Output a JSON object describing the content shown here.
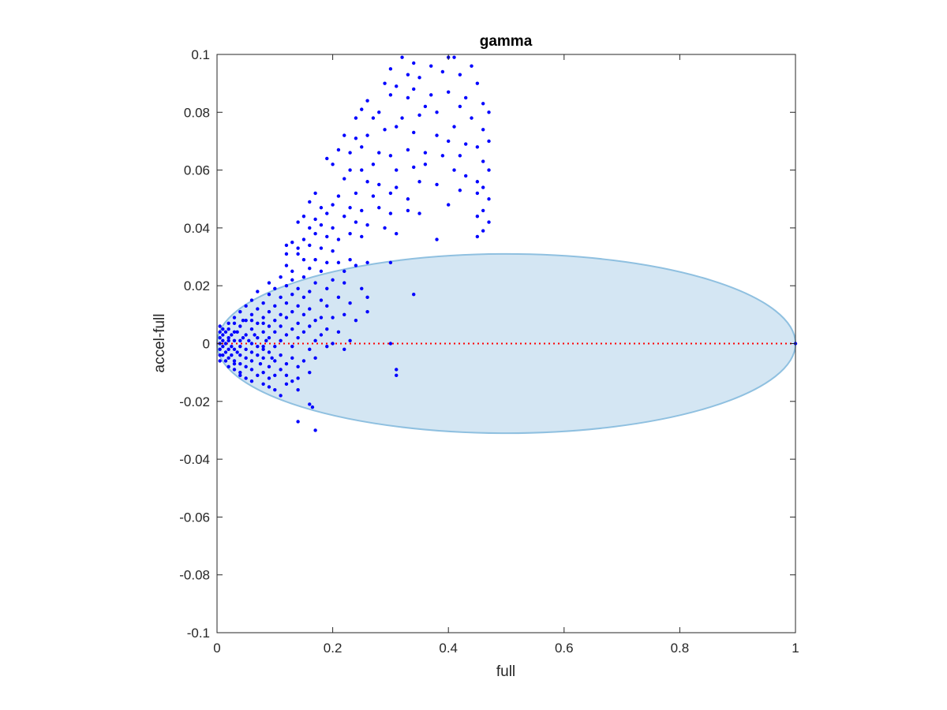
{
  "chart_data": {
    "type": "scatter",
    "title": "gamma",
    "xlabel": "full",
    "ylabel": "accel-full",
    "xlim": [
      0,
      1
    ],
    "ylim": [
      -0.1,
      0.1
    ],
    "xticks": [
      0,
      0.2,
      0.4,
      0.6,
      0.8,
      1
    ],
    "xtick_labels": [
      "0",
      "0.2",
      "0.4",
      "0.6",
      "0.8",
      "1"
    ],
    "yticks": [
      -0.1,
      -0.08,
      -0.06,
      -0.04,
      -0.02,
      0,
      0.02,
      0.04,
      0.06,
      0.08,
      0.1
    ],
    "ytick_labels": [
      "-0.1",
      "-0.08",
      "-0.06",
      "-0.04",
      "-0.02",
      "0",
      "0.02",
      "0.04",
      "0.06",
      "0.08",
      "0.1"
    ],
    "grid": false,
    "marker_color": "#0000ff",
    "ellipse": {
      "center": [
        0.5,
        0
      ],
      "semi_axes": [
        0.5,
        0.031
      ],
      "fill": "#d4e6f3",
      "stroke": "#8fc0e0"
    },
    "reference_line": {
      "y": 0,
      "x_range": [
        0,
        1
      ],
      "color": "#ff0000",
      "style": "dotted"
    },
    "points": [
      [
        0.32,
        0.099
      ],
      [
        0.34,
        0.097
      ],
      [
        0.37,
        0.096
      ],
      [
        0.4,
        0.099
      ],
      [
        0.41,
        0.099
      ],
      [
        0.44,
        0.096
      ],
      [
        0.3,
        0.095
      ],
      [
        0.33,
        0.093
      ],
      [
        0.35,
        0.092
      ],
      [
        0.39,
        0.094
      ],
      [
        0.42,
        0.093
      ],
      [
        0.45,
        0.09
      ],
      [
        0.29,
        0.09
      ],
      [
        0.31,
        0.089
      ],
      [
        0.34,
        0.088
      ],
      [
        0.37,
        0.086
      ],
      [
        0.4,
        0.087
      ],
      [
        0.43,
        0.085
      ],
      [
        0.46,
        0.083
      ],
      [
        0.47,
        0.08
      ],
      [
        0.44,
        0.078
      ],
      [
        0.42,
        0.082
      ],
      [
        0.36,
        0.082
      ],
      [
        0.33,
        0.085
      ],
      [
        0.3,
        0.086
      ],
      [
        0.26,
        0.084
      ],
      [
        0.25,
        0.081
      ],
      [
        0.27,
        0.078
      ],
      [
        0.28,
        0.08
      ],
      [
        0.24,
        0.078
      ],
      [
        0.32,
        0.078
      ],
      [
        0.35,
        0.079
      ],
      [
        0.38,
        0.08
      ],
      [
        0.41,
        0.075
      ],
      [
        0.46,
        0.074
      ],
      [
        0.47,
        0.07
      ],
      [
        0.45,
        0.068
      ],
      [
        0.43,
        0.069
      ],
      [
        0.4,
        0.07
      ],
      [
        0.38,
        0.072
      ],
      [
        0.34,
        0.073
      ],
      [
        0.31,
        0.075
      ],
      [
        0.29,
        0.074
      ],
      [
        0.26,
        0.072
      ],
      [
        0.24,
        0.071
      ],
      [
        0.22,
        0.072
      ],
      [
        0.21,
        0.067
      ],
      [
        0.23,
        0.066
      ],
      [
        0.25,
        0.068
      ],
      [
        0.28,
        0.066
      ],
      [
        0.3,
        0.065
      ],
      [
        0.33,
        0.067
      ],
      [
        0.36,
        0.066
      ],
      [
        0.39,
        0.065
      ],
      [
        0.42,
        0.065
      ],
      [
        0.46,
        0.063
      ],
      [
        0.47,
        0.06
      ],
      [
        0.45,
        0.056
      ],
      [
        0.43,
        0.058
      ],
      [
        0.41,
        0.06
      ],
      [
        0.36,
        0.062
      ],
      [
        0.34,
        0.061
      ],
      [
        0.31,
        0.06
      ],
      [
        0.27,
        0.062
      ],
      [
        0.25,
        0.06
      ],
      [
        0.23,
        0.06
      ],
      [
        0.19,
        0.064
      ],
      [
        0.2,
        0.062
      ],
      [
        0.22,
        0.057
      ],
      [
        0.26,
        0.056
      ],
      [
        0.28,
        0.055
      ],
      [
        0.31,
        0.054
      ],
      [
        0.35,
        0.056
      ],
      [
        0.38,
        0.055
      ],
      [
        0.46,
        0.054
      ],
      [
        0.47,
        0.05
      ],
      [
        0.45,
        0.052
      ],
      [
        0.42,
        0.053
      ],
      [
        0.4,
        0.048
      ],
      [
        0.33,
        0.05
      ],
      [
        0.3,
        0.052
      ],
      [
        0.27,
        0.051
      ],
      [
        0.24,
        0.052
      ],
      [
        0.21,
        0.051
      ],
      [
        0.17,
        0.052
      ],
      [
        0.16,
        0.049
      ],
      [
        0.18,
        0.047
      ],
      [
        0.2,
        0.048
      ],
      [
        0.23,
        0.047
      ],
      [
        0.25,
        0.046
      ],
      [
        0.28,
        0.047
      ],
      [
        0.3,
        0.045
      ],
      [
        0.33,
        0.046
      ],
      [
        0.35,
        0.045
      ],
      [
        0.46,
        0.046
      ],
      [
        0.47,
        0.042
      ],
      [
        0.45,
        0.044
      ],
      [
        0.46,
        0.039
      ],
      [
        0.45,
        0.037
      ],
      [
        0.38,
        0.036
      ],
      [
        0.31,
        0.038
      ],
      [
        0.29,
        0.04
      ],
      [
        0.26,
        0.041
      ],
      [
        0.24,
        0.042
      ],
      [
        0.22,
        0.044
      ],
      [
        0.19,
        0.045
      ],
      [
        0.17,
        0.043
      ],
      [
        0.15,
        0.044
      ],
      [
        0.14,
        0.042
      ],
      [
        0.16,
        0.04
      ],
      [
        0.18,
        0.041
      ],
      [
        0.2,
        0.04
      ],
      [
        0.23,
        0.038
      ],
      [
        0.25,
        0.037
      ],
      [
        0.21,
        0.036
      ],
      [
        0.19,
        0.037
      ],
      [
        0.17,
        0.038
      ],
      [
        0.15,
        0.036
      ],
      [
        0.13,
        0.035
      ],
      [
        0.12,
        0.034
      ],
      [
        0.14,
        0.033
      ],
      [
        0.16,
        0.034
      ],
      [
        0.18,
        0.033
      ],
      [
        0.2,
        0.032
      ],
      [
        0.14,
        0.031
      ],
      [
        0.12,
        0.031
      ],
      [
        0.15,
        0.029
      ],
      [
        0.17,
        0.029
      ],
      [
        0.19,
        0.028
      ],
      [
        0.21,
        0.028
      ],
      [
        0.23,
        0.029
      ],
      [
        0.26,
        0.028
      ],
      [
        0.3,
        0.028
      ],
      [
        0.12,
        0.027
      ],
      [
        0.13,
        0.025
      ],
      [
        0.16,
        0.026
      ],
      [
        0.18,
        0.025
      ],
      [
        0.22,
        0.025
      ],
      [
        0.24,
        0.027
      ],
      [
        0.11,
        0.023
      ],
      [
        0.13,
        0.022
      ],
      [
        0.15,
        0.023
      ],
      [
        0.17,
        0.021
      ],
      [
        0.2,
        0.022
      ],
      [
        0.09,
        0.021
      ],
      [
        0.1,
        0.019
      ],
      [
        0.12,
        0.02
      ],
      [
        0.14,
        0.019
      ],
      [
        0.16,
        0.018
      ],
      [
        0.19,
        0.019
      ],
      [
        0.22,
        0.021
      ],
      [
        0.25,
        0.019
      ],
      [
        0.07,
        0.018
      ],
      [
        0.09,
        0.017
      ],
      [
        0.11,
        0.016
      ],
      [
        0.13,
        0.017
      ],
      [
        0.15,
        0.016
      ],
      [
        0.18,
        0.015
      ],
      [
        0.21,
        0.016
      ],
      [
        0.26,
        0.016
      ],
      [
        0.34,
        0.017
      ],
      [
        0.06,
        0.015
      ],
      [
        0.08,
        0.014
      ],
      [
        0.1,
        0.013
      ],
      [
        0.12,
        0.014
      ],
      [
        0.14,
        0.013
      ],
      [
        0.16,
        0.012
      ],
      [
        0.19,
        0.013
      ],
      [
        0.23,
        0.014
      ],
      [
        0.05,
        0.013
      ],
      [
        0.07,
        0.012
      ],
      [
        0.09,
        0.011
      ],
      [
        0.11,
        0.01
      ],
      [
        0.13,
        0.011
      ],
      [
        0.15,
        0.01
      ],
      [
        0.18,
        0.009
      ],
      [
        0.22,
        0.01
      ],
      [
        0.26,
        0.011
      ],
      [
        0.04,
        0.011
      ],
      [
        0.06,
        0.01
      ],
      [
        0.08,
        0.009
      ],
      [
        0.1,
        0.008
      ],
      [
        0.12,
        0.009
      ],
      [
        0.14,
        0.007
      ],
      [
        0.17,
        0.008
      ],
      [
        0.2,
        0.009
      ],
      [
        0.24,
        0.008
      ],
      [
        0.03,
        0.009
      ],
      [
        0.05,
        0.008
      ],
      [
        0.07,
        0.007
      ],
      [
        0.09,
        0.006
      ],
      [
        0.11,
        0.006
      ],
      [
        0.13,
        0.005
      ],
      [
        0.16,
        0.006
      ],
      [
        0.19,
        0.005
      ],
      [
        0.02,
        0.007
      ],
      [
        0.04,
        0.006
      ],
      [
        0.06,
        0.005
      ],
      [
        0.08,
        0.004
      ],
      [
        0.1,
        0.004
      ],
      [
        0.12,
        0.003
      ],
      [
        0.15,
        0.004
      ],
      [
        0.18,
        0.003
      ],
      [
        0.21,
        0.004
      ],
      [
        0.01,
        0.005
      ],
      [
        0.03,
        0.004
      ],
      [
        0.05,
        0.003
      ],
      [
        0.07,
        0.002
      ],
      [
        0.09,
        0.002
      ],
      [
        0.11,
        0.001
      ],
      [
        0.14,
        0.002
      ],
      [
        0.17,
        0.001
      ],
      [
        0.2,
        0.0
      ],
      [
        0.23,
        0.001
      ],
      [
        0.3,
        0.0
      ],
      [
        0.01,
        0.003
      ],
      [
        0.02,
        0.002
      ],
      [
        0.04,
        0.001
      ],
      [
        0.06,
        0.0
      ],
      [
        0.08,
        -0.001
      ],
      [
        0.1,
        -0.001
      ],
      [
        0.13,
        -0.001
      ],
      [
        0.16,
        -0.002
      ],
      [
        0.19,
        -0.001
      ],
      [
        0.22,
        -0.002
      ],
      [
        0.005,
        0.006
      ],
      [
        0.005,
        0.004
      ],
      [
        0.005,
        0.002
      ],
      [
        0.005,
        0.0
      ],
      [
        0.005,
        -0.002
      ],
      [
        0.005,
        -0.004
      ],
      [
        0.005,
        -0.006
      ],
      [
        0.01,
        -0.001
      ],
      [
        0.01,
        0.001
      ],
      [
        0.015,
        0.004
      ],
      [
        0.015,
        0.0
      ],
      [
        0.015,
        -0.003
      ],
      [
        0.02,
        0.005
      ],
      [
        0.02,
        0.001
      ],
      [
        0.02,
        -0.002
      ],
      [
        0.02,
        -0.005
      ],
      [
        0.025,
        0.003
      ],
      [
        0.025,
        -0.001
      ],
      [
        0.025,
        -0.004
      ],
      [
        0.03,
        0.001
      ],
      [
        0.03,
        -0.002
      ],
      [
        0.03,
        -0.006
      ],
      [
        0.035,
        0.004
      ],
      [
        0.035,
        -0.003
      ],
      [
        0.04,
        -0.001
      ],
      [
        0.04,
        -0.004
      ],
      [
        0.04,
        -0.007
      ],
      [
        0.045,
        0.002
      ],
      [
        0.05,
        -0.002
      ],
      [
        0.05,
        -0.005
      ],
      [
        0.055,
        0.001
      ],
      [
        0.06,
        -0.003
      ],
      [
        0.06,
        -0.006
      ],
      [
        0.065,
        0.003
      ],
      [
        0.07,
        -0.001
      ],
      [
        0.07,
        -0.004
      ],
      [
        0.075,
        -0.007
      ],
      [
        0.08,
        -0.002
      ],
      [
        0.08,
        -0.005
      ],
      [
        0.085,
        0.001
      ],
      [
        0.09,
        -0.003
      ],
      [
        0.09,
        -0.008
      ],
      [
        0.095,
        -0.005
      ],
      [
        0.1,
        -0.006
      ],
      [
        0.11,
        -0.004
      ],
      [
        0.12,
        -0.007
      ],
      [
        0.13,
        -0.005
      ],
      [
        0.14,
        -0.008
      ],
      [
        0.15,
        -0.006
      ],
      [
        0.17,
        -0.005
      ],
      [
        0.02,
        -0.008
      ],
      [
        0.03,
        -0.009
      ],
      [
        0.04,
        -0.01
      ],
      [
        0.05,
        -0.008
      ],
      [
        0.06,
        -0.009
      ],
      [
        0.07,
        -0.011
      ],
      [
        0.08,
        -0.01
      ],
      [
        0.09,
        -0.012
      ],
      [
        0.1,
        -0.011
      ],
      [
        0.11,
        -0.009
      ],
      [
        0.12,
        -0.011
      ],
      [
        0.13,
        -0.013
      ],
      [
        0.14,
        -0.012
      ],
      [
        0.16,
        -0.01
      ],
      [
        0.06,
        -0.013
      ],
      [
        0.08,
        -0.014
      ],
      [
        0.1,
        -0.016
      ],
      [
        0.12,
        -0.014
      ],
      [
        0.14,
        -0.016
      ],
      [
        0.31,
        -0.009
      ],
      [
        0.31,
        -0.011
      ],
      [
        0.16,
        -0.021
      ],
      [
        0.165,
        -0.022
      ],
      [
        0.14,
        -0.027
      ],
      [
        0.17,
        -0.03
      ],
      [
        0.09,
        -0.015
      ],
      [
        0.11,
        -0.018
      ],
      [
        0.05,
        -0.012
      ],
      [
        0.04,
        -0.011
      ],
      [
        0.03,
        -0.007
      ],
      [
        0.015,
        -0.006
      ],
      [
        0.01,
        -0.004
      ],
      [
        0.03,
        0.007
      ],
      [
        0.045,
        0.008
      ],
      [
        0.06,
        0.008
      ],
      [
        0.08,
        0.007
      ],
      [
        1.0,
        0.0
      ]
    ]
  }
}
